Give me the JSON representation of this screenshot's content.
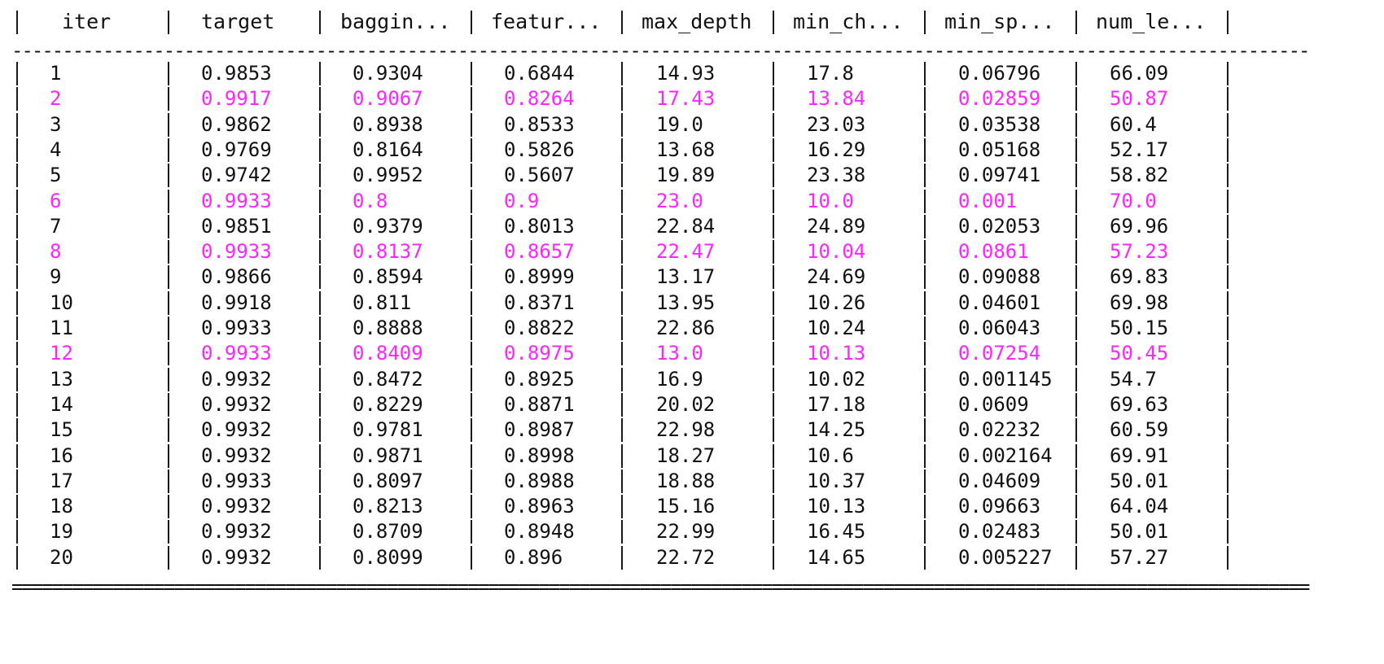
{
  "optimizer_log": {
    "columns": [
      "iter",
      "target",
      "baggin...",
      "featur...",
      "max_depth",
      "min_ch...",
      "min_sp...",
      "num_le..."
    ],
    "rows": [
      {
        "best": false,
        "cells": [
          "1",
          "0.9853",
          "0.9304",
          "0.6844",
          "14.93",
          "17.8",
          "0.06796",
          "66.09"
        ]
      },
      {
        "best": true,
        "cells": [
          "2",
          "0.9917",
          "0.9067",
          "0.8264",
          "17.43",
          "13.84",
          "0.02859",
          "50.87"
        ]
      },
      {
        "best": false,
        "cells": [
          "3",
          "0.9862",
          "0.8938",
          "0.8533",
          "19.0",
          "23.03",
          "0.03538",
          "60.4"
        ]
      },
      {
        "best": false,
        "cells": [
          "4",
          "0.9769",
          "0.8164",
          "0.5826",
          "13.68",
          "16.29",
          "0.05168",
          "52.17"
        ]
      },
      {
        "best": false,
        "cells": [
          "5",
          "0.9742",
          "0.9952",
          "0.5607",
          "19.89",
          "23.38",
          "0.09741",
          "58.82"
        ]
      },
      {
        "best": true,
        "cells": [
          "6",
          "0.9933",
          "0.8",
          "0.9",
          "23.0",
          "10.0",
          "0.001",
          "70.0"
        ]
      },
      {
        "best": false,
        "cells": [
          "7",
          "0.9851",
          "0.9379",
          "0.8013",
          "22.84",
          "24.89",
          "0.02053",
          "69.96"
        ]
      },
      {
        "best": true,
        "cells": [
          "8",
          "0.9933",
          "0.8137",
          "0.8657",
          "22.47",
          "10.04",
          "0.0861",
          "57.23"
        ]
      },
      {
        "best": false,
        "cells": [
          "9",
          "0.9866",
          "0.8594",
          "0.8999",
          "13.17",
          "24.69",
          "0.09088",
          "69.83"
        ]
      },
      {
        "best": false,
        "cells": [
          "10",
          "0.9918",
          "0.811",
          "0.8371",
          "13.95",
          "10.26",
          "0.04601",
          "69.98"
        ]
      },
      {
        "best": false,
        "cells": [
          "11",
          "0.9933",
          "0.8888",
          "0.8822",
          "22.86",
          "10.24",
          "0.06043",
          "50.15"
        ]
      },
      {
        "best": true,
        "cells": [
          "12",
          "0.9933",
          "0.8409",
          "0.8975",
          "13.0",
          "10.13",
          "0.07254",
          "50.45"
        ]
      },
      {
        "best": false,
        "cells": [
          "13",
          "0.9932",
          "0.8472",
          "0.8925",
          "16.9",
          "10.02",
          "0.001145",
          "54.7"
        ]
      },
      {
        "best": false,
        "cells": [
          "14",
          "0.9932",
          "0.8229",
          "0.8871",
          "20.02",
          "17.18",
          "0.0609",
          "69.63"
        ]
      },
      {
        "best": false,
        "cells": [
          "15",
          "0.9932",
          "0.9781",
          "0.8987",
          "22.98",
          "14.25",
          "0.02232",
          "60.59"
        ]
      },
      {
        "best": false,
        "cells": [
          "16",
          "0.9932",
          "0.9871",
          "0.8998",
          "18.27",
          "10.6",
          "0.002164",
          "69.91"
        ]
      },
      {
        "best": false,
        "cells": [
          "17",
          "0.9933",
          "0.8097",
          "0.8988",
          "18.88",
          "10.37",
          "0.04609",
          "50.01"
        ]
      },
      {
        "best": false,
        "cells": [
          "18",
          "0.9932",
          "0.8213",
          "0.8963",
          "15.16",
          "10.13",
          "0.09663",
          "64.04"
        ]
      },
      {
        "best": false,
        "cells": [
          "19",
          "0.9932",
          "0.8709",
          "0.8948",
          "22.99",
          "16.45",
          "0.02483",
          "50.01"
        ]
      },
      {
        "best": false,
        "cells": [
          "20",
          "0.9932",
          "0.8099",
          "0.896",
          "22.72",
          "14.65",
          "0.005227",
          "57.27"
        ]
      }
    ],
    "header_rule": "--------------------------------------------------------------------------------------------------------------------------------",
    "footer_rule": "================================================================================================================================",
    "colors": {
      "text": "#111111",
      "highlight": "#ff24ff",
      "background": "#ffffff"
    }
  }
}
